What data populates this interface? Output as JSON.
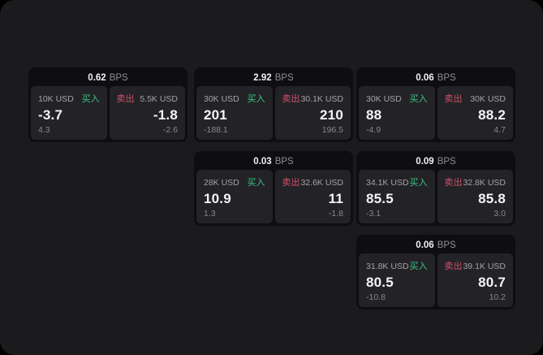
{
  "labels": {
    "buy": "买入",
    "sell": "卖出",
    "bps_unit": "BPS"
  },
  "colors": {
    "window_bg": "#1b1b1d",
    "card_bg": "#0e0e10",
    "panel_bg": "#232327",
    "buy_green": "#3ec47e",
    "sell_red": "#cf5268",
    "text_primary": "#f4f4f6",
    "text_muted": "#8e8e92"
  },
  "cards": [
    {
      "col": 0,
      "row": 0,
      "bps_value": "0.62",
      "buy": {
        "amount": "10K USD",
        "price": "-3.7",
        "delta": "4.3"
      },
      "sell": {
        "amount": "5.5K USD",
        "price": "-1.8",
        "delta": "-2.6"
      }
    },
    {
      "col": 1,
      "row": 0,
      "bps_value": "2.92",
      "buy": {
        "amount": "30K USD",
        "price": "201",
        "delta": "-188.1"
      },
      "sell": {
        "amount": "30.1K USD",
        "price": "210",
        "delta": "196.5"
      }
    },
    {
      "col": 2,
      "row": 0,
      "bps_value": "0.06",
      "buy": {
        "amount": "30K USD",
        "price": "88",
        "delta": "-4.9"
      },
      "sell": {
        "amount": "30K USD",
        "price": "88.2",
        "delta": "4.7"
      }
    },
    {
      "col": 1,
      "row": 1,
      "bps_value": "0.03",
      "buy": {
        "amount": "28K USD",
        "price": "10.9",
        "delta": "1.3"
      },
      "sell": {
        "amount": "32.6K USD",
        "price": "11",
        "delta": "-1.8"
      }
    },
    {
      "col": 2,
      "row": 1,
      "bps_value": "0.09",
      "buy": {
        "amount": "34.1K USD",
        "price": "85.5",
        "delta": "-3.1"
      },
      "sell": {
        "amount": "32.8K USD",
        "price": "85.8",
        "delta": "3.0"
      }
    },
    {
      "col": 2,
      "row": 2,
      "bps_value": "0.06",
      "buy": {
        "amount": "31.8K USD",
        "price": "80.5",
        "delta": "-10.8"
      },
      "sell": {
        "amount": "39.1K USD",
        "price": "80.7",
        "delta": "10.2"
      }
    }
  ]
}
